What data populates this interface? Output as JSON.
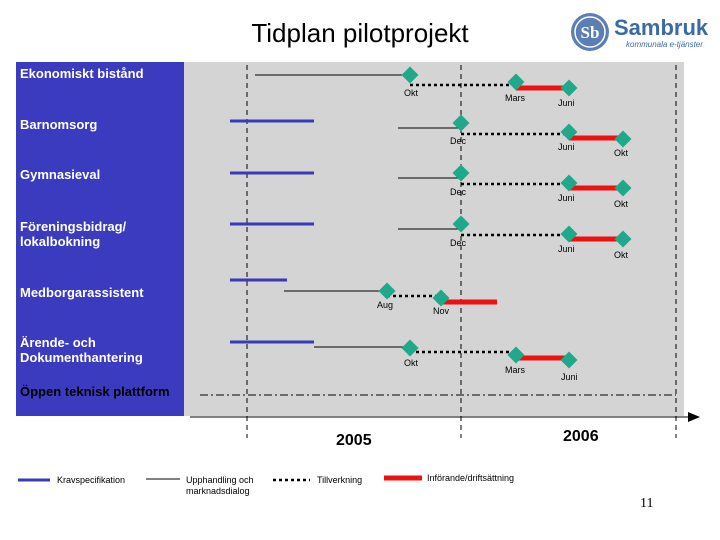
{
  "title": "Tidplan pilotprojekt",
  "logo": {
    "name": "Sambruk",
    "tagline": "kommunala e-tjänster",
    "emblem_text": "Sb"
  },
  "rows": [
    {
      "label": "Ekonomiskt bistånd"
    },
    {
      "label": "Barnomsorg"
    },
    {
      "label": "Gymnasieval"
    },
    {
      "label": "Föreningsbidrag/ lokalbokning"
    },
    {
      "label": "Medborgarassistent"
    },
    {
      "label": "Ärende- och Dokumenthantering"
    },
    {
      "label": "Öppen teknisk plattform"
    }
  ],
  "milestones": {
    "okt": "Okt",
    "mars": "Mars",
    "juni": "Juni",
    "dec": "Dec",
    "aug": "Aug",
    "nov": "Nov"
  },
  "years": {
    "y2005": "2005",
    "y2006": "2006"
  },
  "legend": {
    "kravspec": "Kravspecifikation",
    "upphandling": "Upphandling och marknadsdialog",
    "tillverkning": "Tillverkning",
    "inforande": "Införande/driftsättning"
  },
  "colors": {
    "panel": "#3b3bbf",
    "spec": "#3a3ab8",
    "intro": "#ee1111",
    "milestone": "#1fa88a",
    "grid": "#d4d4d4"
  },
  "page_number": "11"
}
